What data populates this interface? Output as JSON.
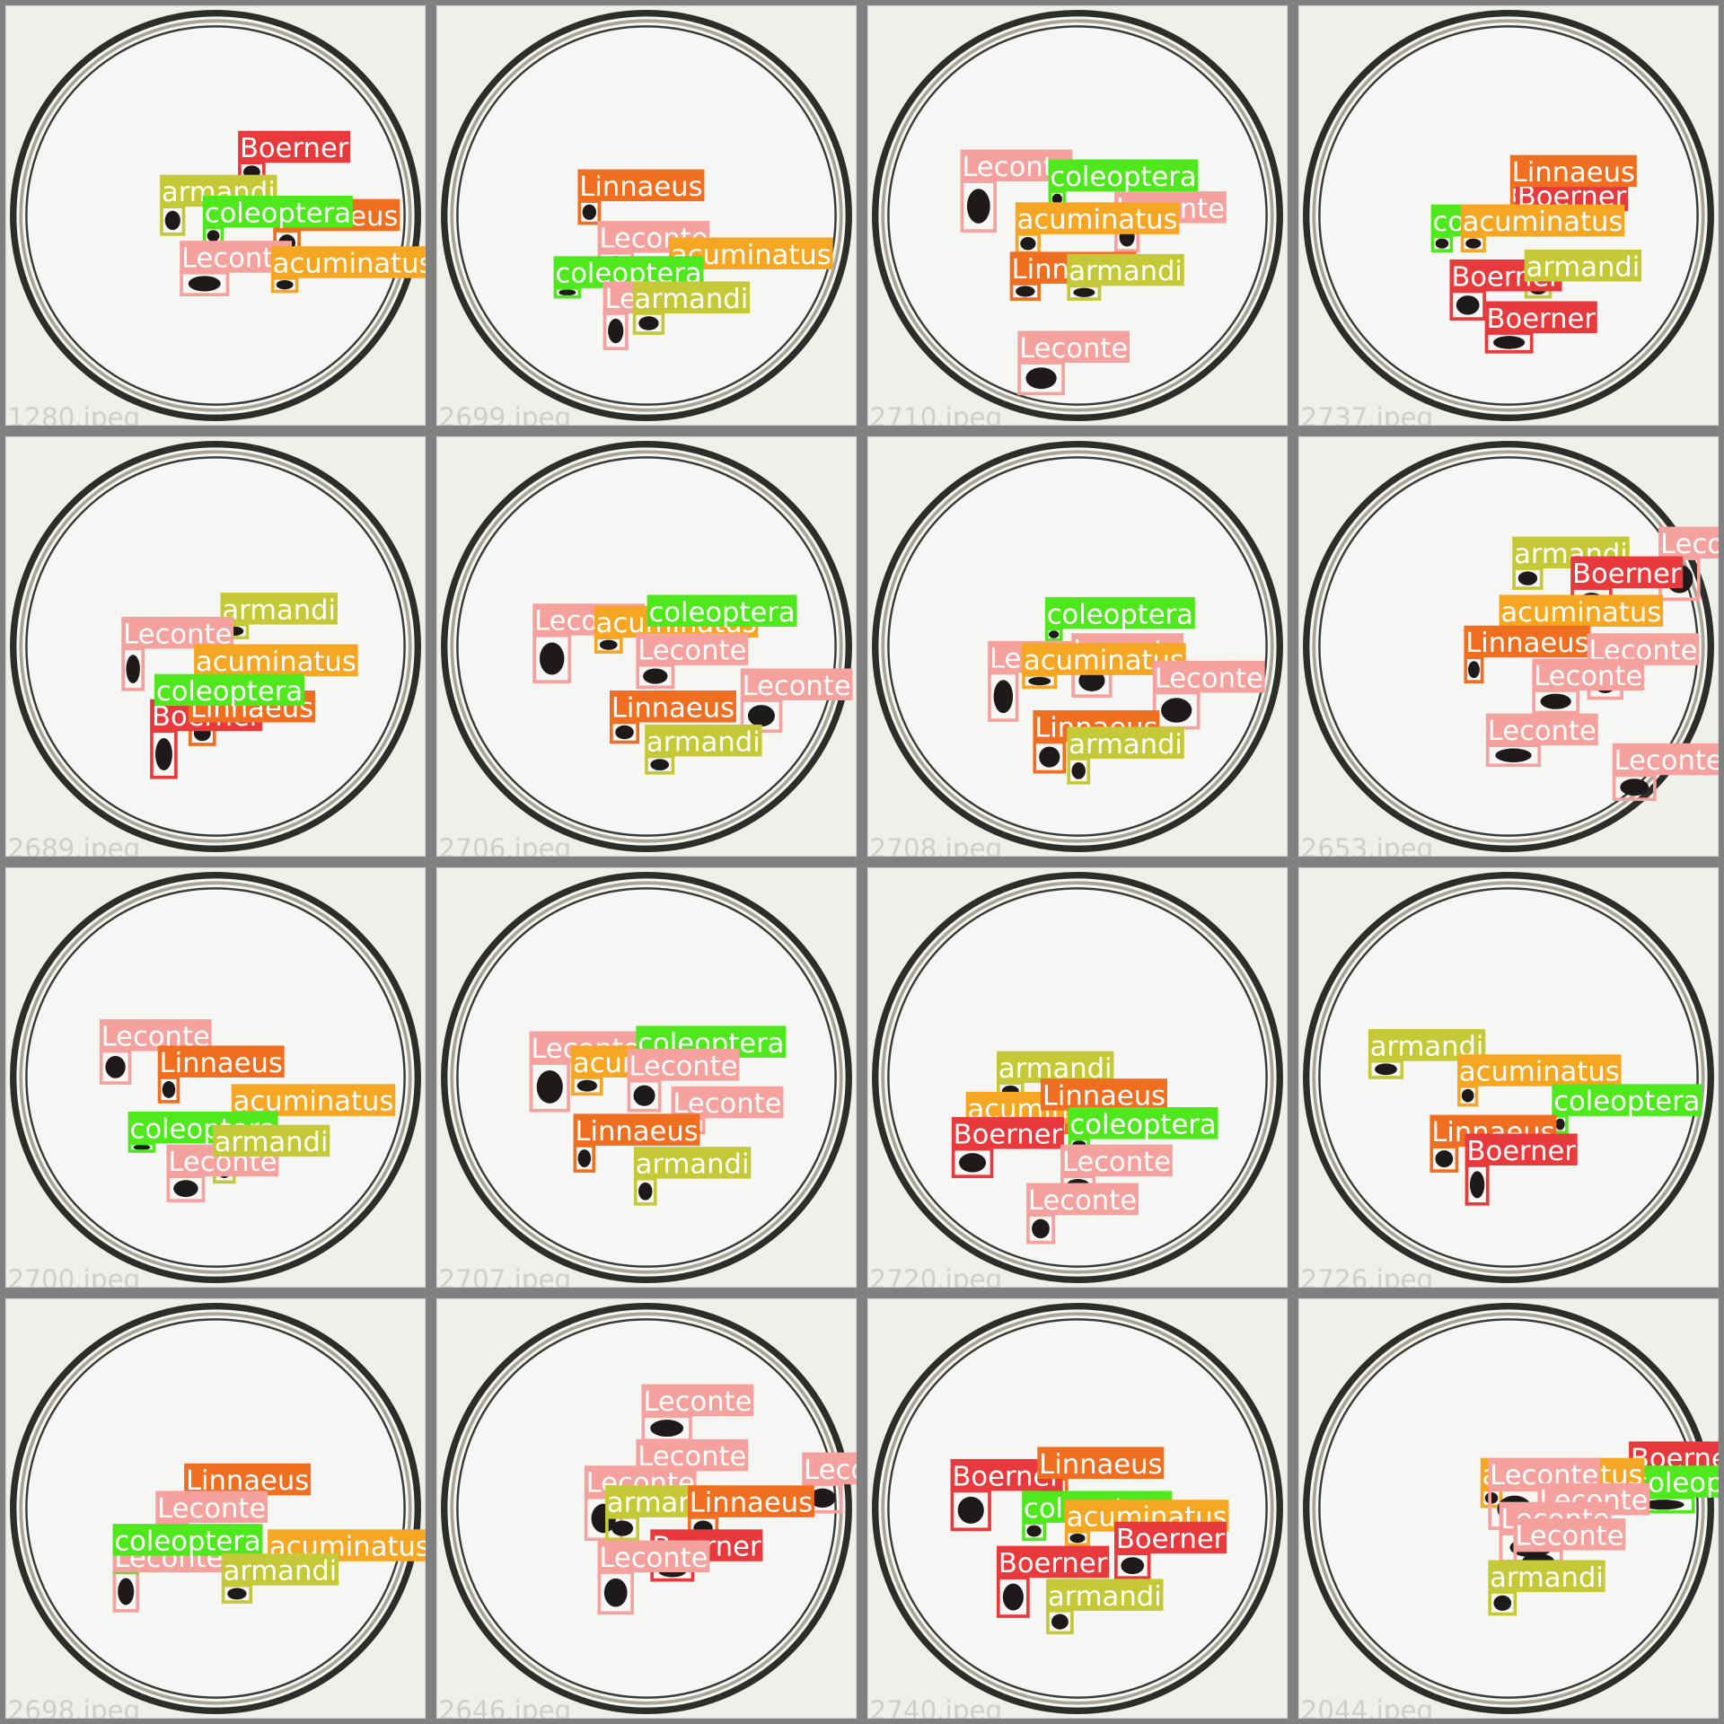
{
  "class_colors": {
    "Boerner": "#e8393c",
    "armandi": "#c5c937",
    "coleoptera": "#4ee81c",
    "Linnaeus": "#f06e20",
    "Leconte": "#f5a19e",
    "acuminatus": "#f5a623"
  },
  "tiles": [
    {
      "file": "1280.jpeg",
      "detections": [
        {
          "label": "Boerner"
        },
        {
          "label": "armandi"
        },
        {
          "label": "Linnaeus"
        },
        {
          "label": "coleoptera"
        },
        {
          "label": "Leconte"
        },
        {
          "label": "acuminatus"
        }
      ]
    },
    {
      "file": "2699.jpeg",
      "detections": [
        {
          "label": "Linnaeus"
        },
        {
          "label": "Leconte"
        },
        {
          "label": "acuminatus"
        },
        {
          "label": "coleoptera"
        },
        {
          "label": "Leconte"
        },
        {
          "label": "armandi"
        }
      ]
    },
    {
      "file": "2710.jpeg",
      "detections": [
        {
          "label": "Leconte"
        },
        {
          "label": "Leconte"
        },
        {
          "label": "coleoptera"
        },
        {
          "label": "acuminatus"
        },
        {
          "label": "Linnaeus"
        },
        {
          "label": "armandi"
        },
        {
          "label": "Leconte"
        }
      ]
    },
    {
      "file": "2737.jpeg",
      "detections": [
        {
          "label": "Boerner"
        },
        {
          "label": "Linnaeus"
        },
        {
          "label": "coleoptera"
        },
        {
          "label": "acuminatus"
        },
        {
          "label": "Boerner"
        },
        {
          "label": "armandi"
        },
        {
          "label": "Boerner"
        }
      ]
    },
    {
      "file": "2689.jpeg",
      "detections": [
        {
          "label": "armandi"
        },
        {
          "label": "Leconte"
        },
        {
          "label": "acuminatus"
        },
        {
          "label": "Boerner"
        },
        {
          "label": "Linnaeus"
        },
        {
          "label": "coleoptera"
        }
      ]
    },
    {
      "file": "2706.jpeg",
      "detections": [
        {
          "label": "Leconte"
        },
        {
          "label": "acuminatus"
        },
        {
          "label": "coleoptera"
        },
        {
          "label": "Leconte"
        },
        {
          "label": "Leconte"
        },
        {
          "label": "Linnaeus"
        },
        {
          "label": "armandi"
        }
      ]
    },
    {
      "file": "2708.jpeg",
      "detections": [
        {
          "label": "coleoptera"
        },
        {
          "label": "Leconte"
        },
        {
          "label": "Leconte"
        },
        {
          "label": "acuminatus"
        },
        {
          "label": "Leconte"
        },
        {
          "label": "Linnaeus"
        },
        {
          "label": "armandi"
        }
      ]
    },
    {
      "file": "2653.jpeg",
      "detections": [
        {
          "label": "armandi"
        },
        {
          "label": "Leconte"
        },
        {
          "label": "Boerner"
        },
        {
          "label": "acuminatus"
        },
        {
          "label": "Linnaeus"
        },
        {
          "label": "Leconte"
        },
        {
          "label": "Leconte"
        },
        {
          "label": "Leconte"
        },
        {
          "label": "Leconte"
        }
      ]
    },
    {
      "file": "2700.jpeg",
      "detections": [
        {
          "label": "Leconte"
        },
        {
          "label": "Linnaeus"
        },
        {
          "label": "acuminatus"
        },
        {
          "label": "coleoptera"
        },
        {
          "label": "Leconte"
        },
        {
          "label": "armandi"
        }
      ]
    },
    {
      "file": "2707.jpeg",
      "detections": [
        {
          "label": "Leconte"
        },
        {
          "label": "acuminatus"
        },
        {
          "label": "coleoptera"
        },
        {
          "label": "Leconte"
        },
        {
          "label": "Leconte"
        },
        {
          "label": "Linnaeus"
        },
        {
          "label": "armandi"
        }
      ]
    },
    {
      "file": "2720.jpeg",
      "detections": [
        {
          "label": "armandi"
        },
        {
          "label": "acuminatus"
        },
        {
          "label": "Boerner"
        },
        {
          "label": "Linnaeus"
        },
        {
          "label": "coleoptera"
        },
        {
          "label": "Leconte"
        },
        {
          "label": "Leconte"
        }
      ]
    },
    {
      "file": "2726.jpeg",
      "detections": [
        {
          "label": "armandi"
        },
        {
          "label": "acuminatus"
        },
        {
          "label": "coleoptera"
        },
        {
          "label": "Linnaeus"
        },
        {
          "label": "Boerner"
        }
      ]
    },
    {
      "file": "2698.jpeg",
      "detections": [
        {
          "label": "Linnaeus"
        },
        {
          "label": "Leconte"
        },
        {
          "label": "Leconte"
        },
        {
          "label": "coleoptera"
        },
        {
          "label": "acuminatus"
        },
        {
          "label": "armandi"
        }
      ]
    },
    {
      "file": "2646.jpeg",
      "detections": [
        {
          "label": "Leconte"
        },
        {
          "label": "Leconte"
        },
        {
          "label": "Leconte"
        },
        {
          "label": "Leconte"
        },
        {
          "label": "armandi"
        },
        {
          "label": "Linnaeus"
        },
        {
          "label": "Boerner"
        },
        {
          "label": "Leconte"
        }
      ]
    },
    {
      "file": "2740.jpeg",
      "detections": [
        {
          "label": "Boerner"
        },
        {
          "label": "Linnaeus"
        },
        {
          "label": "coleoptera"
        },
        {
          "label": "acuminatus"
        },
        {
          "label": "Boerner"
        },
        {
          "label": "Boerner"
        },
        {
          "label": "armandi"
        }
      ]
    },
    {
      "file": "2044.jpeg",
      "detections": [
        {
          "label": "Boerner"
        },
        {
          "label": "coleoptera"
        },
        {
          "label": "acuminatus"
        },
        {
          "label": "Leconte"
        },
        {
          "label": "Leconte"
        },
        {
          "label": "Leconte"
        },
        {
          "label": "Leconte"
        },
        {
          "label": "armandi"
        }
      ]
    }
  ]
}
